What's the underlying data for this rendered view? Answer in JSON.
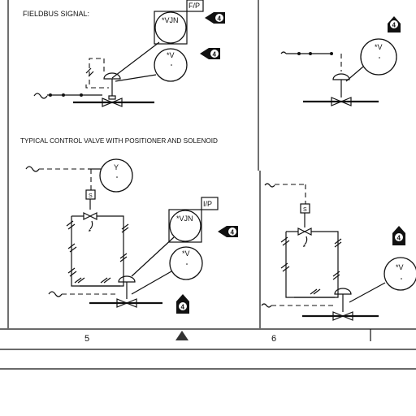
{
  "headings": {
    "fieldbus": "FIELDBUS SIGNAL:",
    "positioner_solenoid": "TYPICAL CONTROL VALVE WITH POSITIONER AND SOLENOID"
  },
  "instruments": {
    "fp_box": "F/P",
    "vjn_top": "*VJN",
    "v_top": "*V",
    "v_top_right": "*V",
    "y_bubble": "Y",
    "ip_box": "I/P",
    "vjn_bottom": "*VJN",
    "v_bottom": "*V",
    "v_bottom_right": "*V"
  },
  "solenoid_labels": {
    "left": "S",
    "right": "S"
  },
  "markers": {
    "top_1": "4",
    "top_2": "4",
    "top_right": "4",
    "bottom_1": "4",
    "bottom_2": "4",
    "bottom_right": "4"
  },
  "footer": {
    "zone_5": "5",
    "zone_6": "6"
  },
  "colors": {
    "ink": "#111111",
    "background": "#ffffff"
  }
}
